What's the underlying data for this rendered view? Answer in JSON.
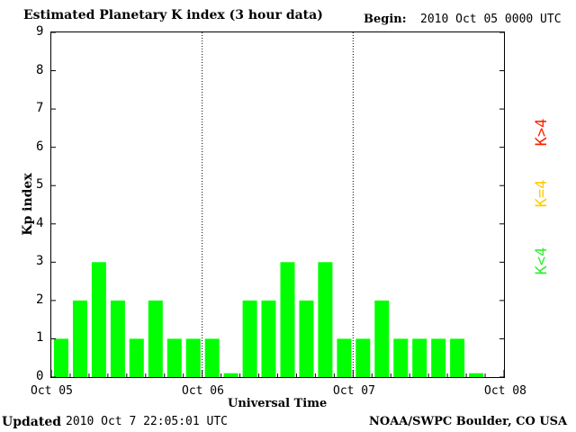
{
  "chart_data": {
    "type": "bar",
    "title": "Estimated Planetary K index (3 hour data)",
    "begin_label": "Begin:",
    "begin_value": "2010 Oct 05 0000 UTC",
    "xlabel": "Universal Time",
    "ylabel": "Kp index",
    "x_ticks": [
      "Oct 05",
      "Oct 06",
      "Oct 07",
      "Oct 08"
    ],
    "y_ticks": [
      "0",
      "1",
      "2",
      "3",
      "4",
      "5",
      "6",
      "7",
      "8",
      "9"
    ],
    "ylim": [
      0,
      9
    ],
    "bars_per_day": 8,
    "days": 3,
    "values": [
      1,
      2,
      3,
      2,
      1,
      2,
      1,
      1,
      1,
      0.1,
      2,
      2,
      3,
      2,
      3,
      1,
      1,
      2,
      1,
      1,
      1,
      1,
      0.1
    ],
    "bar_color": "#00ff00",
    "legend": [
      {
        "label": "K<4",
        "color": "#33ee33"
      },
      {
        "label": "K=4",
        "color": "#ffcc00"
      },
      {
        "label": "K>4",
        "color": "#ff2200"
      }
    ],
    "grid": "dotted day separators"
  },
  "footer": {
    "updated_label": "Updated",
    "updated_value": "2010 Oct  7 22:05:01 UTC",
    "source": "NOAA/SWPC Boulder, CO USA"
  }
}
